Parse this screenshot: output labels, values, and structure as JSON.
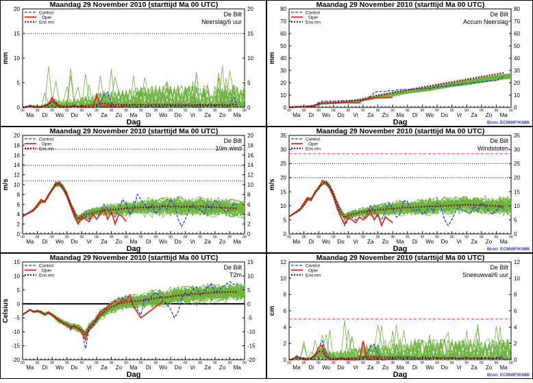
{
  "common": {
    "title": "Maandag   29 November  2010  (starttijd  Ma 00 UTC)",
    "station": "De Bilt",
    "xlabel": "Dag",
    "source": "Bron:  ECMWF/KNMI",
    "legend": [
      "Control",
      "Oper",
      "Ens mn"
    ],
    "day_labels": [
      "Ma",
      "Di",
      "Wo",
      "Do",
      "Vr",
      "Za",
      "Zo",
      "Ma",
      "Di",
      "Wo",
      "Do",
      "Vr",
      "Za",
      "Zo",
      "Ma"
    ],
    "hour_tick_label": "00",
    "colors": {
      "members": "#6db33f",
      "control": "#1f3fdb",
      "oper": "#e8261a",
      "ensmean": "#8b1a1a",
      "threshold_black": "#000000",
      "threshold_magenta": "#e020e0"
    }
  },
  "chart_data": [
    {
      "type": "line",
      "id": "neerslag6",
      "subtitle": "Neerslag/6 uur",
      "ylabel": "mm",
      "ylim": [
        0,
        20
      ],
      "yticks": [
        0,
        5,
        10,
        15,
        20
      ],
      "thresholds": [
        {
          "value": 15,
          "style": "dotted",
          "color": "black"
        }
      ],
      "days": 15,
      "control": [
        0,
        0,
        0.5,
        0,
        0,
        0,
        0.3,
        0.8,
        2,
        1,
        0,
        0,
        0,
        0,
        0.5,
        0,
        0,
        0,
        0,
        0,
        0,
        1,
        2.5,
        3,
        1,
        0,
        0,
        0.5,
        0,
        0.3,
        0.5,
        0,
        0,
        0,
        0.4,
        0.2,
        0,
        0.3,
        0.2,
        0.5,
        0.4,
        0.3,
        0.2,
        0.4,
        0.5,
        0.3,
        0.2,
        0.3,
        0.6,
        0.2,
        0.3,
        0.4,
        0.2,
        0.5,
        0.3,
        0.2,
        0.4,
        2,
        0.5
      ],
      "oper": [
        0,
        0,
        0.3,
        0,
        0,
        0,
        0.2,
        0.6,
        2,
        0.5,
        0,
        0,
        0,
        0,
        0.2,
        0,
        0,
        0,
        0,
        0,
        2.5,
        0.3,
        0.2,
        0.5,
        0.2,
        0.1,
        0,
        0.2,
        0.1
      ],
      "ensmean": [
        0,
        0.1,
        0.3,
        0.2,
        0.1,
        0.1,
        0.3,
        0.6,
        1.2,
        0.8,
        0.3,
        0.2,
        0.1,
        0.2,
        0.3,
        0.2,
        0.2,
        0.3,
        0.4,
        0.5,
        0.6,
        0.7,
        0.8,
        0.7,
        0.6,
        0.5,
        0.6,
        0.5,
        0.6,
        0.5,
        0.6,
        0.5,
        0.6,
        0.5,
        0.6,
        0.5,
        0.6,
        0.5,
        0.5,
        0.6,
        0.5,
        0.5,
        0.6,
        0.5,
        0.5,
        0.6,
        0.5,
        0.5,
        0.6,
        0.5,
        0.5,
        0.6,
        0.5,
        0.5,
        0.6,
        0.5,
        0.5,
        0.6,
        0.5
      ]
    },
    {
      "type": "line",
      "id": "accumneerslag",
      "subtitle": "Accum Neerslag",
      "ylabel": "mm",
      "ylim": [
        0,
        80
      ],
      "yticks": [
        0,
        10,
        20,
        30,
        40,
        50,
        60,
        70,
        80
      ],
      "thresholds": [],
      "days": 15,
      "control": [
        0,
        0,
        0.5,
        0.5,
        0.5,
        0.5,
        1,
        2,
        4,
        5,
        5,
        5,
        5,
        5,
        5.5,
        5.5,
        5.5,
        5.5,
        5.5,
        5.5,
        5.5,
        6.5,
        9,
        12,
        13,
        13,
        13,
        13.5,
        13.5,
        14,
        14.5,
        14.5,
        14.5,
        14.5,
        15,
        15,
        15,
        15.5,
        15.5,
        16,
        16.5,
        17,
        17,
        17.5,
        18,
        18.5,
        18.5,
        19,
        19.5,
        19.5,
        20,
        20.5,
        20.5,
        21,
        21.5,
        21.5,
        22,
        24,
        24.5
      ],
      "oper": [
        0,
        0,
        0.3,
        0.3,
        0.3,
        0.3,
        0.5,
        1.2,
        3,
        3.5,
        3.5,
        3.5,
        3.5,
        3.5,
        3.8,
        3.8,
        3.8,
        3.8,
        3.8,
        3.8,
        6.5,
        6.8,
        7,
        7.5,
        7.7,
        7.8,
        7.8,
        8,
        8.1
      ],
      "ensmean": [
        0,
        0.1,
        0.4,
        0.6,
        0.7,
        0.8,
        1.1,
        1.7,
        2.9,
        3.7,
        4,
        4.2,
        4.3,
        4.5,
        4.8,
        5,
        5.2,
        5.5,
        5.9,
        6.4,
        7,
        7.7,
        8.5,
        9.2,
        9.8,
        10.3,
        10.9,
        11.4,
        12,
        12.5,
        13.1,
        13.6,
        14.2,
        14.7,
        15.3,
        15.8,
        16.4,
        16.9,
        17.4,
        18,
        18.5,
        19,
        19.6,
        20.1,
        20.6,
        21.2,
        21.7,
        22.2,
        22.8,
        23.3,
        23.8,
        24.4,
        24.9,
        25.4,
        26,
        26.5,
        27,
        27.6,
        28.1
      ]
    },
    {
      "type": "line",
      "id": "wind10m",
      "subtitle": "10m wind",
      "ylabel": "m/s",
      "ylim": [
        0,
        20
      ],
      "yticks": [
        0,
        2,
        4,
        6,
        8,
        10,
        12,
        14,
        16,
        18,
        20
      ],
      "thresholds": [
        {
          "value": 10.8,
          "style": "dotted",
          "color": "black"
        },
        {
          "value": 13.9,
          "style": "dotted",
          "color": "black"
        },
        {
          "value": 17.2,
          "style": "dotted",
          "color": "black"
        }
      ],
      "days": 15,
      "control": [
        3.5,
        4,
        4.5,
        5,
        6,
        7,
        6.5,
        8,
        9,
        10,
        10.5,
        9.5,
        8,
        6,
        4,
        2,
        3,
        3.5,
        3,
        4,
        3,
        4.5,
        6,
        5,
        4,
        3.5,
        5,
        7,
        6,
        4,
        5,
        8,
        7,
        6,
        5,
        6,
        4,
        5,
        6,
        5,
        7,
        6,
        3,
        1.5,
        3,
        5,
        6,
        5,
        5,
        4,
        6,
        5,
        7,
        6,
        5,
        4.5,
        5,
        6,
        6
      ],
      "oper": [
        3.5,
        4,
        4.5,
        5,
        6,
        7,
        6.5,
        8,
        9,
        10.5,
        10,
        9,
        7.5,
        5.5,
        3.5,
        2,
        3.5,
        3,
        2.5,
        4,
        3,
        4,
        5,
        3,
        4.5,
        2,
        4,
        3.5,
        2.5
      ],
      "ensmean": [
        3.6,
        4,
        4.4,
        4.8,
        5.6,
        6.6,
        6.6,
        7.8,
        9,
        10,
        10.2,
        9.4,
        8,
        6,
        4.3,
        3,
        3.6,
        4,
        4,
        4.3,
        4.5,
        4.6,
        4.8,
        4.8,
        5,
        4.9,
        5,
        5.1,
        5.2,
        5.2,
        5.3,
        5.3,
        5.4,
        5.4,
        5.4,
        5.5,
        5.5,
        5.5,
        5.6,
        5.6,
        5.5,
        5.6,
        5.6,
        5.5,
        5.5,
        5.6,
        5.5,
        5.5,
        5.6,
        5.5,
        5.4,
        5.5,
        5.4,
        5.4,
        5.3,
        5.3,
        5.2,
        5.2,
        5.2
      ]
    },
    {
      "type": "line",
      "id": "windstoten",
      "subtitle": "Windstoten",
      "ylabel": "m/s",
      "ylim": [
        0,
        35
      ],
      "yticks": [
        0,
        5,
        10,
        15,
        20,
        25,
        30,
        35
      ],
      "thresholds": [
        {
          "value": 20,
          "style": "dotted",
          "color": "black"
        },
        {
          "value": 25,
          "style": "dotted",
          "color": "black"
        },
        {
          "value": 28.5,
          "style": "dashed",
          "color": "magenta"
        }
      ],
      "days": 15,
      "control": [
        6,
        7,
        8,
        9,
        11,
        13,
        12,
        15,
        16,
        18,
        18.5,
        17,
        14,
        10,
        6,
        3,
        5,
        6,
        5,
        6,
        5,
        7,
        10,
        8,
        6,
        5,
        8,
        11,
        9,
        6,
        7,
        12,
        11,
        9,
        8,
        9,
        7,
        8,
        10,
        8,
        11,
        10,
        5,
        3,
        5,
        8,
        10,
        8,
        8,
        7,
        10,
        8,
        11,
        10,
        8,
        7,
        8,
        10,
        9
      ],
      "oper": [
        6,
        7,
        8,
        9,
        11,
        13,
        12,
        15,
        16,
        19,
        18,
        16,
        13,
        9,
        6,
        3.5,
        6,
        5,
        4,
        6,
        5,
        6,
        8,
        5,
        7,
        3,
        6,
        5,
        4
      ],
      "ensmean": [
        6.2,
        7,
        7.8,
        8.6,
        10.2,
        12.2,
        12.4,
        14.6,
        16.4,
        18,
        18.2,
        16.8,
        14.2,
        10.8,
        7.8,
        5.8,
        6.6,
        7,
        7.2,
        7.6,
        7.8,
        8,
        8.3,
        8.4,
        8.6,
        8.6,
        8.8,
        8.9,
        9,
        9.1,
        9.2,
        9.3,
        9.4,
        9.4,
        9.5,
        9.6,
        9.6,
        9.7,
        9.8,
        9.8,
        9.8,
        9.9,
        10,
        10,
        10.1,
        10.2,
        10.2,
        10.3,
        10.4,
        10.3,
        10.3,
        10.2,
        10.2,
        10.1,
        10,
        10,
        9.9,
        9.9,
        9.8
      ]
    },
    {
      "type": "line",
      "id": "t2m",
      "subtitle": "T2m",
      "ylabel": "Celsius",
      "ylim": [
        -20,
        15
      ],
      "yticks": [
        -20,
        -15,
        -10,
        -5,
        0,
        5,
        10,
        15
      ],
      "thresholds": [
        {
          "value": 0,
          "style": "solid",
          "color": "black"
        }
      ],
      "days": 15,
      "control": [
        -4,
        -3,
        -2,
        -3,
        -2.5,
        -3,
        -4,
        -3,
        -4,
        -5,
        -6,
        -7,
        -7.5,
        -9,
        -8,
        -9,
        -10,
        -16,
        -9,
        -8,
        -6,
        -4,
        -3,
        -1,
        0,
        1,
        2,
        0.5,
        3,
        2,
        -1,
        -2,
        -4,
        2,
        1,
        3,
        4,
        3,
        1,
        0,
        -2,
        -5,
        -3,
        2,
        4,
        3,
        5,
        6,
        3,
        4,
        6,
        7,
        4,
        5,
        6,
        7,
        8,
        7,
        7
      ],
      "oper": [
        -4,
        -3,
        -2,
        -3,
        -2.5,
        -3,
        -4,
        -3,
        -4,
        -5,
        -6,
        -7,
        -7.5,
        -8.5,
        -8,
        -9,
        -10,
        -13,
        -8,
        -7,
        -5,
        -3,
        -2,
        -1,
        0,
        1,
        0,
        2,
        1,
        3,
        -1,
        -3,
        -5,
        -4,
        -3,
        -2,
        -1,
        0,
        1
      ],
      "ensmean": [
        -3.8,
        -3,
        -2.2,
        -2.8,
        -2.6,
        -3,
        -3.8,
        -3.2,
        -4,
        -5,
        -6,
        -6.8,
        -7.4,
        -8.2,
        -8,
        -8.6,
        -9.4,
        -10.8,
        -8.6,
        -7.2,
        -5.6,
        -4,
        -3,
        -2,
        -1.2,
        -0.6,
        0,
        0.3,
        0.6,
        0.8,
        0.9,
        1,
        1.2,
        1.4,
        1.6,
        1.8,
        2,
        2.2,
        2.3,
        2.4,
        2.6,
        2.8,
        3,
        3.1,
        3.2,
        3.3,
        3.5,
        3.6,
        3.7,
        3.8,
        3.9,
        4,
        4.1,
        4.1,
        4.2,
        4.2,
        4.3,
        4.3,
        4.3
      ]
    },
    {
      "type": "line",
      "id": "sneeuwval6",
      "subtitle": "Sneeuwval/6 uur",
      "ylabel": "cm",
      "ylim": [
        0,
        12
      ],
      "yticks": [
        0,
        2,
        4,
        6,
        8,
        10,
        12
      ],
      "thresholds": [
        {
          "value": 5,
          "style": "dashed",
          "color": "magenta"
        }
      ],
      "days": 15,
      "control": [
        0,
        0,
        0.5,
        0.3,
        0,
        0,
        0.2,
        0.6,
        1.5,
        2.3,
        1,
        0,
        0,
        0,
        0.3,
        0,
        0,
        0,
        0,
        0,
        0,
        0.8,
        1.6,
        1.9,
        0.8,
        0,
        0,
        0.4,
        0,
        0.2,
        0.3,
        0,
        0,
        0,
        0.2,
        0.1,
        0,
        0.2,
        0.1,
        0.3,
        0.2,
        0.2,
        0.1,
        0.2,
        0.3,
        0.2,
        0.1,
        0.2,
        0.3,
        0.1,
        0.2,
        0.2,
        0.1,
        0.3,
        0.2,
        0.1,
        0.2,
        0.4,
        0.2
      ],
      "oper": [
        0,
        0,
        0.4,
        0.2,
        0,
        0,
        0.1,
        0.5,
        1.5,
        1.8,
        0.4,
        0,
        0,
        0,
        0.1,
        0,
        0,
        0,
        0,
        0,
        2.3,
        0.2,
        0.1,
        0.3,
        0.1,
        0,
        0,
        0.1,
        0
      ],
      "ensmean": [
        0,
        0.1,
        0.3,
        0.2,
        0.1,
        0.1,
        0.2,
        0.5,
        1,
        1,
        0.4,
        0.2,
        0.1,
        0.1,
        0.2,
        0.1,
        0.1,
        0.2,
        0.2,
        0.3,
        0.3,
        0.4,
        0.4,
        0.4,
        0.3,
        0.3,
        0.3,
        0.3,
        0.3,
        0.3,
        0.3,
        0.3,
        0.3,
        0.3,
        0.3,
        0.2,
        0.3,
        0.3,
        0.2,
        0.3,
        0.2,
        0.2,
        0.3,
        0.2,
        0.2,
        0.2,
        0.2,
        0.2,
        0.2,
        0.2,
        0.2,
        0.2,
        0.2,
        0.2,
        0.2,
        0.2,
        0.2,
        0.2,
        0.2
      ]
    }
  ]
}
